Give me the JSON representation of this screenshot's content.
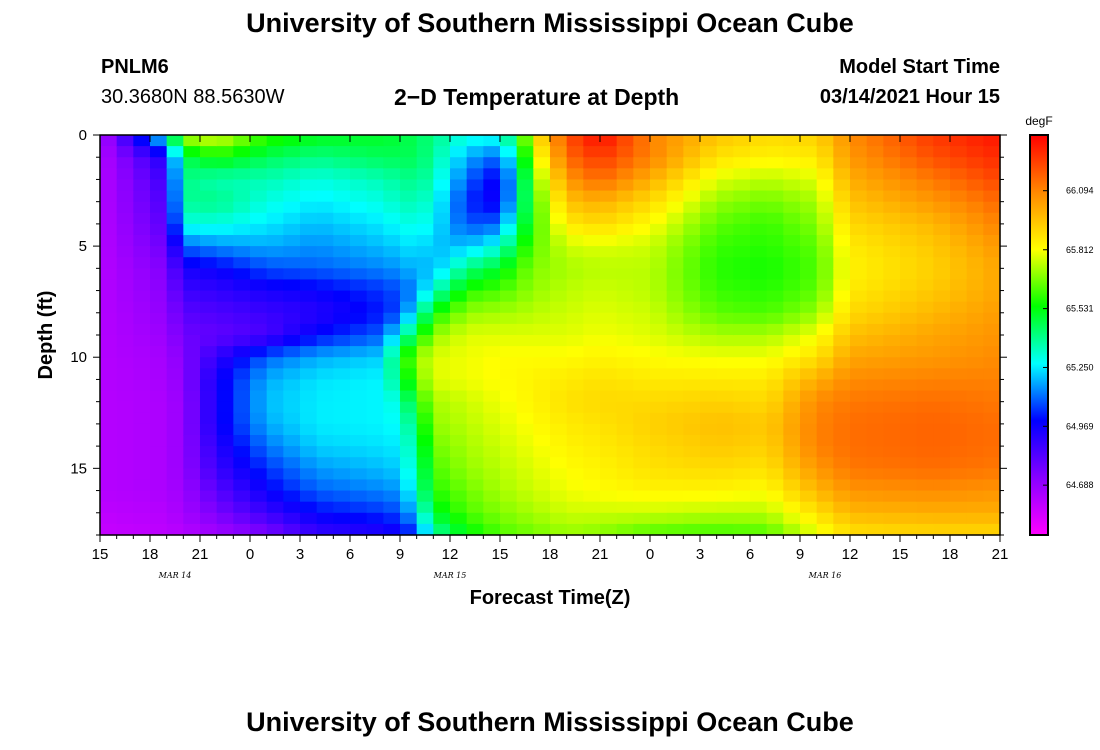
{
  "header": {
    "title": "University of Southern Mississippi Ocean Cube",
    "station_id": "PNLM6",
    "station_coords": "30.3680N 88.5630W",
    "chart_title": "2−D Temperature at Depth",
    "model_start_label": "Model Start Time",
    "model_start_value": "03/14/2021 Hour 15"
  },
  "footer": {
    "title": "University of Southern Mississippi Ocean Cube"
  },
  "chart_data": {
    "type": "heatmap",
    "title": "2−D Temperature at Depth",
    "xlabel": "Forecast Time(Z)",
    "ylabel": "Depth (ft)",
    "x_tick_labels": [
      "15",
      "18",
      "21",
      "0",
      "3",
      "6",
      "9",
      "12",
      "15",
      "18",
      "21",
      "0",
      "3",
      "6",
      "9",
      "12",
      "15",
      "18",
      "21"
    ],
    "date_labels": [
      {
        "label": "MAR 14",
        "after_tick": 1.5
      },
      {
        "label": "MAR 15",
        "after_tick": 7
      },
      {
        "label": "MAR 16",
        "after_tick": 14.5
      }
    ],
    "x_range_hours": [
      0,
      54
    ],
    "y_ticks": [
      0,
      5,
      10,
      15
    ],
    "y_range": [
      0,
      18
    ],
    "y_inverted": true,
    "colorbar": {
      "unit": "degF",
      "ticks": [
        64.688,
        64.969,
        65.25,
        65.531,
        65.812,
        66.094
      ],
      "tick_labels": [
        "64.688",
        "64.969",
        "65.250",
        "65.531",
        "65.812",
        "66.094"
      ],
      "range": [
        64.45,
        66.36
      ],
      "colors": [
        "#ff00ff",
        "#8800ff",
        "#0000ff",
        "#00ffff",
        "#00ff00",
        "#ffff00",
        "#ff8800",
        "#ff0000"
      ]
    },
    "depth_levels": [
      0,
      1,
      2,
      3,
      4,
      5,
      6,
      7,
      8,
      9,
      10,
      11,
      12,
      13,
      14,
      15,
      16,
      17,
      18
    ],
    "keyframes": [
      {
        "hour": 0,
        "t": [
          64.62,
          64.62,
          64.62,
          64.62,
          64.62,
          64.62,
          64.62,
          64.62,
          64.62,
          64.62,
          64.62,
          64.62,
          64.62,
          64.62,
          64.62,
          64.62,
          64.62,
          64.6,
          64.58
        ]
      },
      {
        "hour": 4,
        "t": [
          65.3,
          64.95,
          64.88,
          64.85,
          64.82,
          64.78,
          64.74,
          64.72,
          64.7,
          64.68,
          64.66,
          64.65,
          64.64,
          64.64,
          64.64,
          64.64,
          64.64,
          64.62,
          64.6
        ]
      },
      {
        "hour": 5,
        "t": [
          65.75,
          65.45,
          65.4,
          65.38,
          65.3,
          65.1,
          64.95,
          64.88,
          64.82,
          64.78,
          64.74,
          64.72,
          64.7,
          64.7,
          64.7,
          64.7,
          64.68,
          64.66,
          64.62
        ]
      },
      {
        "hour": 7,
        "t": [
          65.8,
          65.55,
          65.35,
          65.4,
          65.3,
          65.15,
          64.98,
          64.9,
          64.84,
          64.8,
          64.9,
          64.96,
          64.96,
          64.96,
          64.92,
          64.88,
          64.82,
          64.75,
          64.66
        ]
      },
      {
        "hour": 10,
        "t": [
          65.6,
          65.45,
          65.35,
          65.3,
          65.25,
          65.18,
          65.08,
          64.95,
          64.88,
          64.85,
          65.1,
          65.18,
          65.2,
          65.18,
          65.12,
          65.05,
          64.98,
          64.88,
          64.74
        ]
      },
      {
        "hour": 13,
        "t": [
          65.52,
          65.4,
          65.3,
          65.25,
          65.2,
          65.15,
          65.1,
          64.98,
          64.92,
          65.0,
          65.18,
          65.24,
          65.25,
          65.25,
          65.22,
          65.16,
          65.1,
          65.0,
          64.88
        ]
      },
      {
        "hour": 17,
        "t": [
          65.5,
          65.45,
          65.35,
          65.3,
          65.25,
          65.2,
          65.14,
          65.05,
          65.02,
          65.1,
          65.22,
          65.26,
          65.26,
          65.26,
          65.24,
          65.2,
          65.14,
          65.05,
          64.92
        ]
      },
      {
        "hour": 18,
        "t": [
          65.48,
          65.45,
          65.38,
          65.34,
          65.28,
          65.22,
          65.16,
          65.08,
          65.08,
          65.3,
          65.52,
          65.45,
          65.32,
          65.28,
          65.25,
          65.22,
          65.16,
          65.08,
          64.96
        ]
      },
      {
        "hour": 19,
        "t": [
          65.45,
          65.45,
          65.4,
          65.35,
          65.3,
          65.25,
          65.2,
          65.15,
          65.28,
          65.5,
          65.7,
          65.65,
          65.55,
          65.45,
          65.4,
          65.36,
          65.32,
          65.22,
          65.05
        ]
      },
      {
        "hour": 20,
        "t": [
          65.4,
          65.38,
          65.34,
          65.3,
          65.26,
          65.2,
          65.18,
          65.32,
          65.55,
          65.7,
          65.78,
          65.78,
          65.72,
          65.7,
          65.66,
          65.62,
          65.58,
          65.5,
          65.35
        ]
      },
      {
        "hour": 22,
        "t": [
          65.3,
          65.18,
          65.1,
          65.04,
          65.08,
          65.2,
          65.4,
          65.58,
          65.7,
          65.78,
          65.8,
          65.8,
          65.76,
          65.74,
          65.72,
          65.7,
          65.66,
          65.62,
          65.52
        ]
      },
      {
        "hour": 24,
        "t": [
          65.3,
          65.1,
          64.96,
          64.96,
          65.1,
          65.3,
          65.5,
          65.62,
          65.72,
          65.78,
          65.82,
          65.82,
          65.8,
          65.78,
          65.76,
          65.74,
          65.72,
          65.68,
          65.62
        ]
      },
      {
        "hour": 25,
        "t": [
          65.5,
          65.35,
          65.28,
          65.3,
          65.38,
          65.5,
          65.6,
          65.66,
          65.72,
          65.78,
          65.82,
          65.83,
          65.82,
          65.8,
          65.78,
          65.76,
          65.74,
          65.7,
          65.64
        ]
      },
      {
        "hour": 26,
        "t": [
          65.85,
          65.75,
          65.65,
          65.6,
          65.6,
          65.64,
          65.68,
          65.7,
          65.74,
          65.78,
          65.82,
          65.84,
          65.84,
          65.82,
          65.8,
          65.78,
          65.76,
          65.72,
          65.66
        ]
      },
      {
        "hour": 28,
        "t": [
          66.2,
          66.15,
          66.05,
          65.95,
          65.86,
          65.76,
          65.72,
          65.74,
          65.76,
          65.78,
          65.82,
          65.86,
          65.88,
          65.86,
          65.84,
          65.82,
          65.8,
          65.76,
          65.7
        ]
      },
      {
        "hour": 30,
        "t": [
          66.35,
          66.25,
          66.15,
          66.0,
          65.9,
          65.78,
          65.74,
          65.76,
          65.78,
          65.8,
          65.84,
          65.88,
          65.9,
          65.88,
          65.86,
          65.84,
          65.82,
          65.76,
          65.68
        ]
      },
      {
        "hour": 33,
        "t": [
          66.1,
          66.1,
          66.0,
          65.9,
          65.82,
          65.76,
          65.74,
          65.74,
          65.76,
          65.78,
          65.82,
          65.86,
          65.9,
          65.92,
          65.9,
          65.88,
          65.84,
          65.76,
          65.62
        ]
      },
      {
        "hour": 37,
        "t": [
          65.95,
          65.88,
          65.78,
          65.7,
          65.64,
          65.6,
          65.58,
          65.6,
          65.64,
          65.72,
          65.8,
          65.86,
          65.92,
          65.96,
          65.94,
          65.9,
          65.84,
          65.74,
          65.6
        ]
      },
      {
        "hour": 40,
        "t": [
          65.9,
          65.84,
          65.74,
          65.66,
          65.6,
          65.58,
          65.56,
          65.58,
          65.62,
          65.72,
          65.8,
          65.86,
          65.9,
          65.94,
          65.92,
          65.88,
          65.82,
          65.74,
          65.62
        ]
      },
      {
        "hour": 43,
        "t": [
          65.92,
          65.86,
          65.78,
          65.72,
          65.68,
          65.64,
          65.62,
          65.64,
          65.7,
          65.8,
          65.88,
          66.0,
          66.08,
          66.1,
          66.1,
          66.05,
          65.98,
          65.88,
          65.78
        ]
      },
      {
        "hour": 45,
        "t": [
          66.08,
          66.05,
          66.0,
          65.95,
          65.9,
          65.86,
          65.84,
          65.86,
          65.9,
          65.96,
          66.02,
          66.08,
          66.12,
          66.14,
          66.14,
          66.12,
          66.06,
          65.98,
          65.88
        ]
      },
      {
        "hour": 50,
        "t": [
          66.25,
          66.2,
          66.12,
          66.05,
          65.98,
          65.94,
          65.92,
          65.94,
          65.98,
          66.02,
          66.05,
          66.1,
          66.14,
          66.16,
          66.16,
          66.14,
          66.08,
          66.0,
          65.9
        ]
      },
      {
        "hour": 54,
        "t": [
          66.32,
          66.28,
          66.22,
          66.15,
          66.1,
          66.05,
          66.02,
          66.02,
          66.04,
          66.06,
          66.08,
          66.1,
          66.12,
          66.14,
          66.14,
          66.12,
          66.06,
          66.0,
          65.9
        ]
      }
    ]
  }
}
